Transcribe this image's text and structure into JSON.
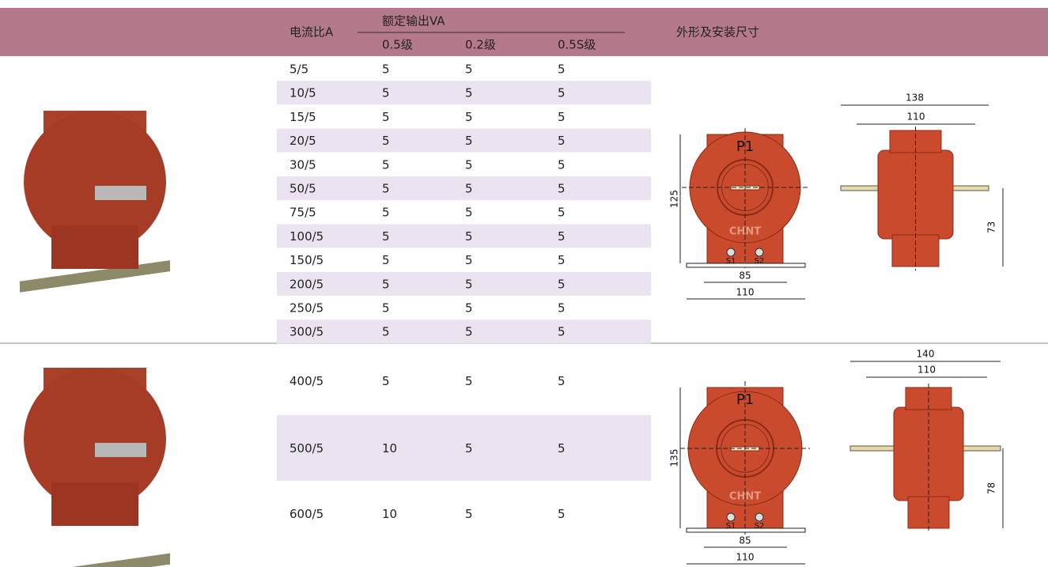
{
  "header": {
    "ratio": "电流比A",
    "rated_output": "额定输出VA",
    "classes": [
      "0.5级",
      "0.2级",
      "0.5S级"
    ],
    "dimensions": "外形及安装尺寸"
  },
  "groups": [
    {
      "rows": [
        [
          "5/5",
          "5",
          "5",
          "5"
        ],
        [
          "10/5",
          "5",
          "5",
          "5"
        ],
        [
          "15/5",
          "5",
          "5",
          "5"
        ],
        [
          "20/5",
          "5",
          "5",
          "5"
        ],
        [
          "30/5",
          "5",
          "5",
          "5"
        ],
        [
          "50/5",
          "5",
          "5",
          "5"
        ],
        [
          "75/5",
          "5",
          "5",
          "5"
        ],
        [
          "100/5",
          "5",
          "5",
          "5"
        ],
        [
          "150/5",
          "5",
          "5",
          "5"
        ],
        [
          "200/5",
          "5",
          "5",
          "5"
        ],
        [
          "250/5",
          "5",
          "5",
          "5"
        ],
        [
          "300/5",
          "5",
          "5",
          "5"
        ]
      ],
      "front": {
        "label": "P1",
        "brand": "CHNT",
        "terminals": [
          "S1",
          "S2"
        ],
        "height": "125",
        "inner_width": "85",
        "outer_width": "110"
      },
      "side": {
        "overall": "138",
        "inner": "110",
        "height": "73"
      }
    },
    {
      "rows": [
        [
          "400/5",
          "5",
          "5",
          "5"
        ],
        [
          "500/5",
          "10",
          "5",
          "5"
        ],
        [
          "600/5",
          "10",
          "5",
          "5"
        ]
      ],
      "front": {
        "label": "P1",
        "brand": "CHNT",
        "terminals": [
          "S1",
          "S2"
        ],
        "height": "135",
        "inner_width": "85",
        "outer_width": "110"
      },
      "side": {
        "overall": "140",
        "inner": "110",
        "height": "78"
      }
    }
  ]
}
